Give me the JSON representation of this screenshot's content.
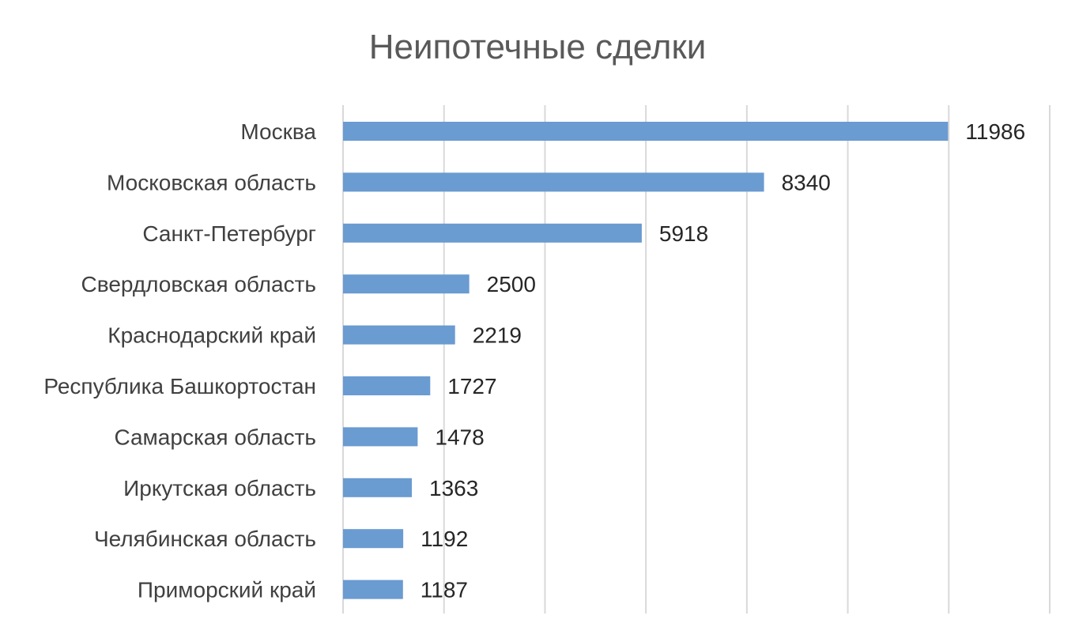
{
  "chart_data": {
    "type": "bar",
    "orientation": "horizontal",
    "title": "Неипотечные сделки",
    "xlabel": "",
    "ylabel": "",
    "categories": [
      "Москва",
      "Московская область",
      "Санкт-Петербург",
      "Свердловская область",
      "Краснодарский край",
      "Республика Башкортостан",
      "Самарская область",
      "Иркутская область",
      "Челябинская область",
      "Приморский край"
    ],
    "values": [
      11986,
      8340,
      5918,
      2500,
      2219,
      1727,
      1478,
      1363,
      1192,
      1187
    ],
    "data_labels": [
      "11986",
      "8340",
      "5918",
      "2500",
      "2219",
      "1727",
      "1478",
      "1363",
      "1192",
      "1187"
    ],
    "xlim": [
      0,
      14000
    ],
    "grid_step": 2000,
    "grid": true,
    "legend": "none",
    "bar_color": "#6a9bd1"
  }
}
